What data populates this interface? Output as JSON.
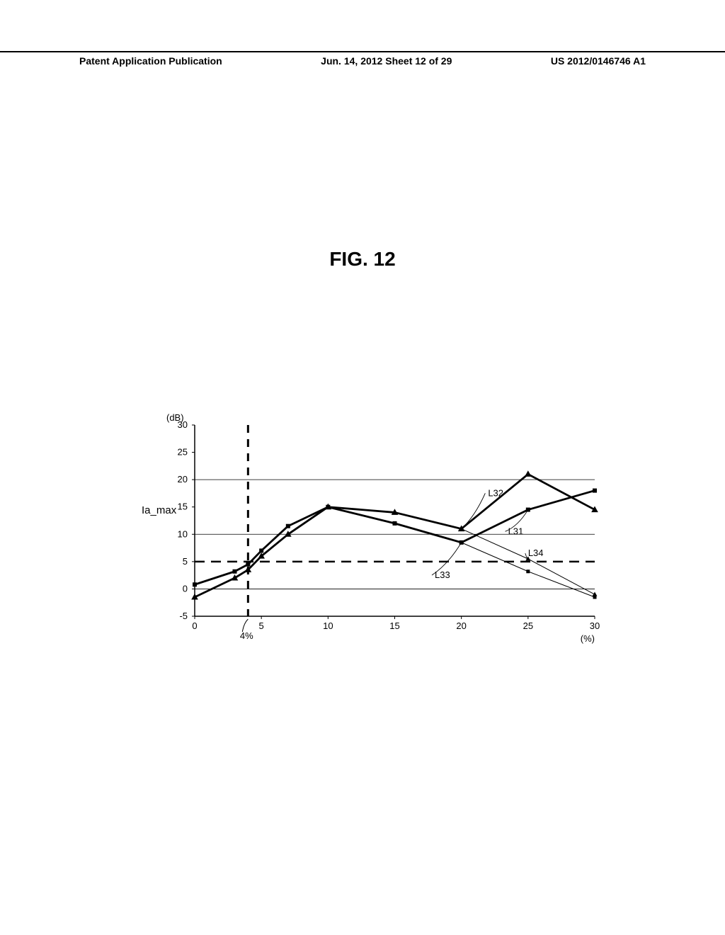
{
  "header": {
    "left": "Patent Application Publication",
    "center": "Jun. 14, 2012  Sheet 12 of 29",
    "right": "US 2012/0146746 A1"
  },
  "figure_title": "FIG. 12",
  "chart": {
    "type": "line",
    "background_color": "#ffffff",
    "grid_color": "#000000",
    "axis_color": "#000000",
    "y_label": "Ia_max",
    "y_unit": "(dB)",
    "x_unit": "(%)",
    "x_annotation": "4%",
    "xlim": [
      0,
      30
    ],
    "ylim": [
      -5,
      30
    ],
    "xtick_step": 5,
    "ytick_step": 5,
    "xticks": [
      0,
      5,
      10,
      15,
      20,
      25,
      30
    ],
    "yticks": [
      -5,
      0,
      5,
      10,
      15,
      20,
      25,
      30
    ],
    "horizontal_gridlines": [
      0,
      10,
      20
    ],
    "reference_line_y": 5,
    "vertical_line_x": 4,
    "series": [
      {
        "name": "L31",
        "marker": "square",
        "color": "#000000",
        "line_width": 2.8,
        "marker_size": 6,
        "points": [
          {
            "x": 0,
            "y": 0.8
          },
          {
            "x": 3,
            "y": 3.2
          },
          {
            "x": 4,
            "y": 4.5
          },
          {
            "x": 5,
            "y": 7
          },
          {
            "x": 7,
            "y": 11.5
          },
          {
            "x": 10,
            "y": 15
          },
          {
            "x": 15,
            "y": 12
          },
          {
            "x": 20,
            "y": 8.5
          },
          {
            "x": 25,
            "y": 14.5
          },
          {
            "x": 30,
            "y": 18
          }
        ],
        "label_pos": {
          "x": 23.5,
          "y": 10
        }
      },
      {
        "name": "L32",
        "marker": "triangle",
        "color": "#000000",
        "line_width": 2.8,
        "marker_size": 7,
        "points": [
          {
            "x": 0,
            "y": -1.5
          },
          {
            "x": 3,
            "y": 2
          },
          {
            "x": 4,
            "y": 3.5
          },
          {
            "x": 5,
            "y": 6
          },
          {
            "x": 7,
            "y": 10
          },
          {
            "x": 10,
            "y": 15
          },
          {
            "x": 15,
            "y": 14
          },
          {
            "x": 20,
            "y": 11
          },
          {
            "x": 25,
            "y": 21
          },
          {
            "x": 30,
            "y": 14.5
          }
        ],
        "label_pos": {
          "x": 22,
          "y": 17
        }
      },
      {
        "name": "L33",
        "marker": "square",
        "color": "#000000",
        "line_width": 1.0,
        "marker_size": 5,
        "points": [
          {
            "x": 0,
            "y": 0.8
          },
          {
            "x": 3,
            "y": 3.2
          },
          {
            "x": 4,
            "y": 4.5
          },
          {
            "x": 5,
            "y": 7
          },
          {
            "x": 7,
            "y": 11.5
          },
          {
            "x": 10,
            "y": 15
          },
          {
            "x": 15,
            "y": 12
          },
          {
            "x": 20,
            "y": 8.5
          },
          {
            "x": 25,
            "y": 3.2
          },
          {
            "x": 30,
            "y": -1.5
          }
        ],
        "label_pos": {
          "x": 18,
          "y": 2
        }
      },
      {
        "name": "L34",
        "marker": "triangle",
        "color": "#000000",
        "line_width": 1.0,
        "marker_size": 5,
        "points": [
          {
            "x": 0,
            "y": -1.5
          },
          {
            "x": 3,
            "y": 2
          },
          {
            "x": 4,
            "y": 3.5
          },
          {
            "x": 5,
            "y": 6
          },
          {
            "x": 7,
            "y": 10
          },
          {
            "x": 10,
            "y": 15
          },
          {
            "x": 15,
            "y": 14
          },
          {
            "x": 20,
            "y": 11
          },
          {
            "x": 25,
            "y": 5.5
          },
          {
            "x": 30,
            "y": -1
          }
        ],
        "label_pos": {
          "x": 25,
          "y": 6
        }
      }
    ]
  }
}
